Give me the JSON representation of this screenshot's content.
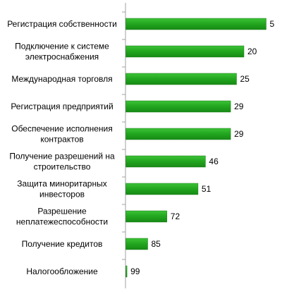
{
  "chart_data": {
    "type": "bar",
    "orientation": "horizontal",
    "title": "",
    "xlabel": "",
    "ylabel": "",
    "grid": false,
    "legend": "none",
    "bar_color": "#22a51f",
    "bar_color_dark": "#1a7d18",
    "axis_color": "#a0a0a0",
    "value_axis_reversed": true,
    "xlim": [
      0,
      100
    ],
    "categories": [
      [
        "Регистрация собственности"
      ],
      [
        "Подключение к системе",
        "электроснабжения"
      ],
      [
        "Международная торговля"
      ],
      [
        "Регистрация предприятий"
      ],
      [
        "Обеспечение исполнения",
        "контрактов"
      ],
      [
        "Получение разрешений на",
        "строительство"
      ],
      [
        "Защита миноритарных",
        "инвесторов"
      ],
      [
        "Разрешение",
        "неплатежеспособности"
      ],
      [
        "Получение кредитов"
      ],
      [
        "Налогообложение"
      ]
    ],
    "values": [
      5,
      20,
      25,
      29,
      29,
      46,
      51,
      72,
      85,
      99
    ]
  }
}
